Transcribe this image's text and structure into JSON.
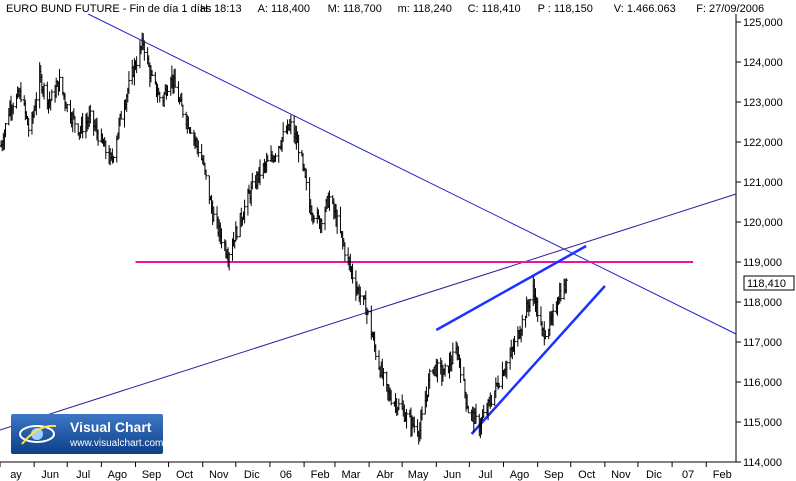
{
  "header": {
    "title": "EURO BUND FUTURE",
    "period": "Fin de día 1 días",
    "stats": [
      {
        "text": "H: 18:13",
        "color": "#000000"
      },
      {
        "text": "A: 118,400",
        "color": "#000000"
      },
      {
        "text": "M: 118,700",
        "color": "#000000"
      },
      {
        "text": "m: 118,240",
        "color": "#000000"
      },
      {
        "text": "C: 118,410",
        "color": "#000000"
      },
      {
        "text": "P : 118,150",
        "color": "#e0001b"
      },
      {
        "text": "V: 1.466.063",
        "color": "#000000"
      },
      {
        "text": "F: 27/09/2006",
        "color": "#000000"
      }
    ]
  },
  "logo": {
    "name": "Visual Chart",
    "url": "www.visualchart.com"
  },
  "last_price_label": "118,410",
  "chart_data": {
    "type": "bar",
    "subtype": "OHLC",
    "title": "EURO BUND FUTURE",
    "ylim": [
      114.0,
      125.2
    ],
    "y_ticks": [
      "114,000",
      "115,000",
      "116,000",
      "117,000",
      "118,000",
      "119,000",
      "120,000",
      "121,000",
      "122,000",
      "123,000",
      "124,000",
      "125,000"
    ],
    "y_tick_values": [
      114,
      115,
      116,
      117,
      118,
      119,
      120,
      121,
      122,
      123,
      124,
      125
    ],
    "x_ticks": [
      "ay",
      "Jun",
      "Jul",
      "Ago",
      "Sep",
      "Oct",
      "Nov",
      "Dic",
      "06",
      "Feb",
      "Mar",
      "Abr",
      "May",
      "Jun",
      "Jul",
      "Ago",
      "Sep",
      "Oct",
      "Nov",
      "Dic",
      "07",
      "Feb"
    ],
    "x_range": [
      "2005-05-01",
      "2007-02-28"
    ],
    "last_price": 118.41,
    "price_path": [
      [
        "2005-05-02",
        121.9
      ],
      [
        "2005-05-10",
        122.9
      ],
      [
        "2005-05-20",
        123.2
      ],
      [
        "2005-05-28",
        122.2
      ],
      [
        "2005-06-06",
        123.6
      ],
      [
        "2005-06-15",
        123.0
      ],
      [
        "2005-06-24",
        123.5
      ],
      [
        "2005-07-02",
        122.8
      ],
      [
        "2005-07-12",
        122.3
      ],
      [
        "2005-07-22",
        122.6
      ],
      [
        "2005-08-01",
        122.0
      ],
      [
        "2005-08-10",
        121.5
      ],
      [
        "2005-08-20",
        122.8
      ],
      [
        "2005-08-30",
        123.8
      ],
      [
        "2005-09-08",
        124.5
      ],
      [
        "2005-09-15",
        123.6
      ],
      [
        "2005-09-25",
        123.0
      ],
      [
        "2005-10-03",
        123.7
      ],
      [
        "2005-10-12",
        122.9
      ],
      [
        "2005-10-22",
        122.3
      ],
      [
        "2005-11-01",
        121.5
      ],
      [
        "2005-11-10",
        120.2
      ],
      [
        "2005-11-18",
        119.6
      ],
      [
        "2005-11-24",
        119.2
      ],
      [
        "2005-12-02",
        119.8
      ],
      [
        "2005-12-12",
        120.6
      ],
      [
        "2005-12-22",
        121.2
      ],
      [
        "2006-01-03",
        121.6
      ],
      [
        "2006-01-12",
        122.1
      ],
      [
        "2006-01-20",
        122.4
      ],
      [
        "2006-01-28",
        121.8
      ],
      [
        "2006-02-06",
        120.4
      ],
      [
        "2006-02-15",
        120.0
      ],
      [
        "2006-02-24",
        120.6
      ],
      [
        "2006-03-03",
        120.0
      ],
      [
        "2006-03-10",
        119.3
      ],
      [
        "2006-03-20",
        118.4
      ],
      [
        "2006-03-30",
        117.8
      ],
      [
        "2006-04-08",
        116.6
      ],
      [
        "2006-04-18",
        115.7
      ],
      [
        "2006-04-28",
        115.4
      ],
      [
        "2006-05-08",
        115.0
      ],
      [
        "2006-05-17",
        114.8
      ],
      [
        "2006-05-28",
        116.4
      ],
      [
        "2006-06-08",
        116.2
      ],
      [
        "2006-06-20",
        116.8
      ],
      [
        "2006-06-30",
        115.3
      ],
      [
        "2006-07-10",
        114.9
      ],
      [
        "2006-07-20",
        115.5
      ],
      [
        "2006-07-30",
        116.2
      ],
      [
        "2006-08-08",
        116.7
      ],
      [
        "2006-08-18",
        117.5
      ],
      [
        "2006-08-28",
        118.3
      ],
      [
        "2006-09-05",
        117.2
      ],
      [
        "2006-09-14",
        117.5
      ],
      [
        "2006-09-20",
        118.2
      ],
      [
        "2006-09-27",
        118.4
      ]
    ],
    "lines": [
      {
        "name": "downtrend",
        "color": "#2222cc",
        "points": [
          [
            "2005-07-20",
            125.2
          ],
          [
            "2007-02-28",
            117.2
          ]
        ]
      },
      {
        "name": "uptrend",
        "color": "#3a1a9a",
        "points": [
          [
            "2005-05-01",
            114.8
          ],
          [
            "2007-02-28",
            120.7
          ]
        ]
      },
      {
        "name": "support",
        "color": "#ee1199",
        "points": [
          [
            "2005-09-01",
            119.0
          ],
          [
            "2007-01-20",
            119.0
          ]
        ]
      },
      {
        "name": "channel-top",
        "color": "#1a33ff",
        "points": [
          [
            "2006-06-01",
            117.3
          ],
          [
            "2006-10-15",
            119.4
          ]
        ]
      },
      {
        "name": "channel-bottom",
        "color": "#1a33ff",
        "points": [
          [
            "2006-07-03",
            114.7
          ],
          [
            "2006-11-01",
            118.4
          ]
        ]
      }
    ]
  }
}
